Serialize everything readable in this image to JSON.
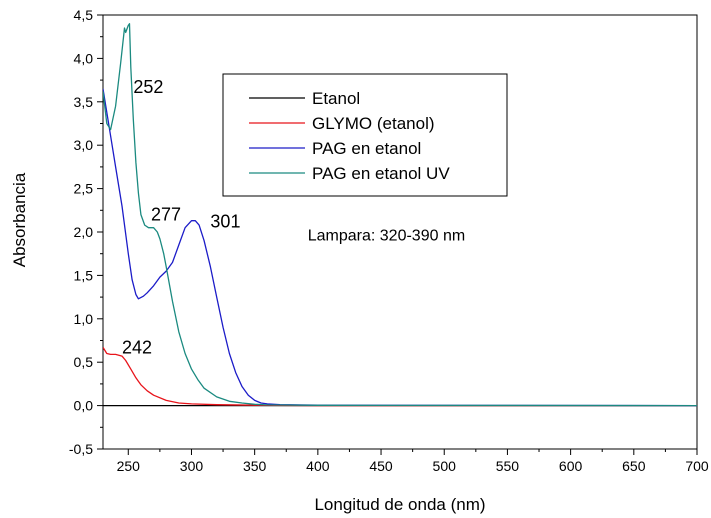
{
  "chart_data": {
    "type": "line",
    "title": "",
    "xlabel": "Longitud de onda (nm)",
    "ylabel": "Absorbancia",
    "xlim": [
      230,
      700
    ],
    "ylim": [
      -0.5,
      4.5
    ],
    "x_ticks": [
      "250",
      "300",
      "350",
      "400",
      "450",
      "500",
      "550",
      "600",
      "650",
      "700"
    ],
    "y_ticks": [
      "-0,5",
      "0,0",
      "0,5",
      "1,0",
      "1,5",
      "2,0",
      "2,5",
      "3,0",
      "3,5",
      "4,0",
      "4,5"
    ],
    "grid": false,
    "legend_position": "top-center",
    "series": [
      {
        "name": "Etanol",
        "color": "#000000",
        "x": [
          230,
          700
        ],
        "y": [
          0.0,
          0.0
        ]
      },
      {
        "name": "GLYMO (etanol)",
        "color": "#e8141b",
        "x": [
          230,
          233,
          236,
          240,
          245,
          248,
          252,
          256,
          260,
          265,
          270,
          280,
          290,
          300,
          320,
          350,
          400,
          700
        ],
        "y": [
          0.67,
          0.6,
          0.59,
          0.59,
          0.57,
          0.52,
          0.42,
          0.32,
          0.24,
          0.17,
          0.12,
          0.06,
          0.03,
          0.02,
          0.01,
          0.005,
          0.0,
          0.0
        ]
      },
      {
        "name": "PAG en etanol",
        "color": "#1c1cc8",
        "x": [
          230,
          235,
          240,
          245,
          250,
          253,
          256,
          258,
          262,
          265,
          270,
          275,
          280,
          285,
          290,
          295,
          300,
          303,
          306,
          310,
          315,
          320,
          325,
          330,
          335,
          340,
          345,
          350,
          355,
          360,
          370,
          400,
          700
        ],
        "y": [
          3.65,
          3.2,
          2.75,
          2.3,
          1.75,
          1.45,
          1.28,
          1.23,
          1.26,
          1.3,
          1.38,
          1.48,
          1.55,
          1.65,
          1.85,
          2.05,
          2.13,
          2.13,
          2.08,
          1.9,
          1.6,
          1.25,
          0.9,
          0.6,
          0.38,
          0.22,
          0.12,
          0.06,
          0.03,
          0.02,
          0.01,
          0.005,
          0.0
        ]
      },
      {
        "name": "PAG en etanol UV",
        "color": "#1b8a80",
        "x": [
          230,
          233,
          236,
          240,
          244,
          247,
          248,
          250,
          251,
          252,
          254,
          256,
          258,
          260,
          263,
          266,
          270,
          273,
          275,
          278,
          280,
          285,
          290,
          295,
          300,
          305,
          310,
          320,
          330,
          340,
          350,
          360,
          400,
          700
        ],
        "y": [
          3.62,
          3.25,
          3.18,
          3.45,
          3.95,
          4.35,
          4.3,
          4.38,
          4.4,
          3.9,
          3.3,
          2.8,
          2.45,
          2.2,
          2.08,
          2.05,
          2.05,
          2.0,
          1.92,
          1.75,
          1.6,
          1.2,
          0.85,
          0.6,
          0.42,
          0.3,
          0.2,
          0.1,
          0.05,
          0.03,
          0.015,
          0.008,
          0.003,
          0.0
        ]
      }
    ],
    "annotations": [
      {
        "text": "252",
        "x": 254,
        "y": 3.6
      },
      {
        "text": "277",
        "x": 268,
        "y": 2.13
      },
      {
        "text": "301",
        "x": 315,
        "y": 2.05
      },
      {
        "text": "242",
        "x": 245,
        "y": 0.6
      },
      {
        "text": "Lampara: 320-390 nm",
        "x": 392,
        "y": 1.9
      }
    ]
  }
}
